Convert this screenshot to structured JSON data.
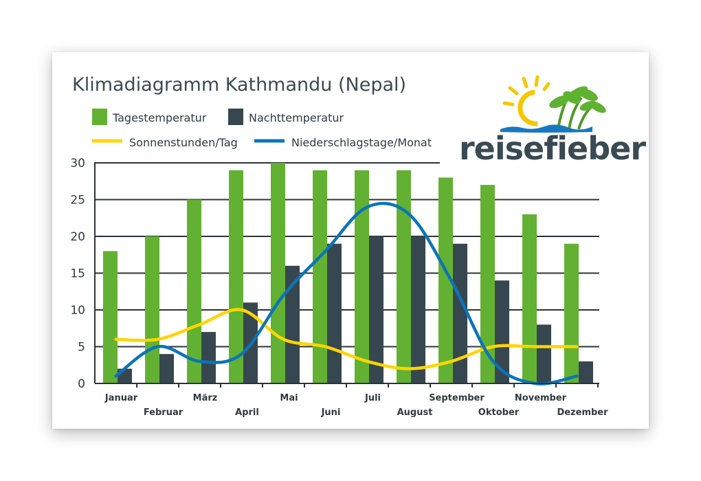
{
  "chart_data": {
    "type": "bar",
    "title": "Klimadiagramm Kathmandu (Nepal)",
    "categories": [
      "Januar",
      "Februar",
      "März",
      "April",
      "Mai",
      "Juni",
      "Juli",
      "August",
      "September",
      "Oktober",
      "November",
      "Dezember"
    ],
    "ylim": [
      0,
      30
    ],
    "yticks": [
      0,
      5,
      10,
      15,
      20,
      25,
      30
    ],
    "grid": true,
    "legend_position": "top-left",
    "series": [
      {
        "name": "Tagestemperatur",
        "type": "bar",
        "color": "#63b132",
        "values": [
          18,
          20,
          25,
          29,
          30,
          29,
          29,
          29,
          28,
          27,
          23,
          19
        ]
      },
      {
        "name": "Nachttemperatur",
        "type": "bar",
        "color": "#37474f",
        "values": [
          2,
          4,
          7,
          11,
          16,
          19,
          20,
          20,
          19,
          14,
          8,
          3
        ]
      },
      {
        "name": "Sonnenstunden/Tag",
        "type": "line",
        "color": "#ffd500",
        "values": [
          6,
          6,
          8,
          10,
          6,
          5,
          3,
          2,
          3,
          5,
          5,
          5
        ]
      },
      {
        "name": "Niederschlagstage/Monat",
        "type": "line",
        "color": "#0b74b8",
        "values": [
          1,
          5,
          3,
          4,
          12,
          18,
          24,
          23,
          14,
          3,
          0,
          1
        ]
      }
    ]
  },
  "logo": {
    "text": "reisefieber"
  }
}
